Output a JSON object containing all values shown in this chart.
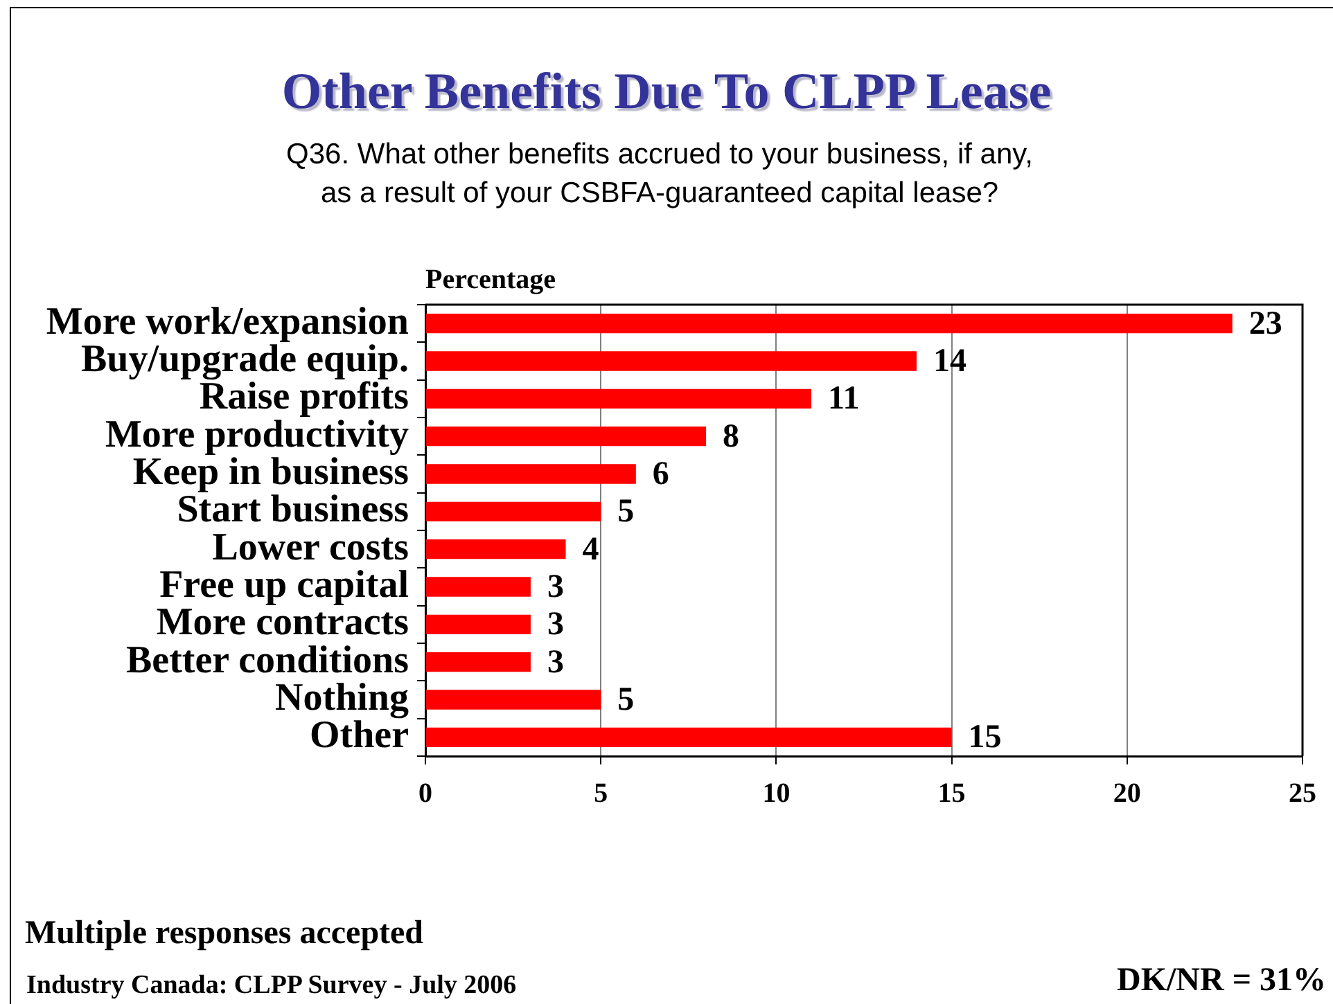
{
  "chart_data": {
    "type": "bar",
    "orientation": "horizontal",
    "title": "Other Benefits Due To CLPP Lease",
    "subtitle": "Q36. What other benefits accrued to your business, if any, as a result of your CSBFA-guaranteed capital lease?",
    "xlabel": "Percentage",
    "categories": [
      "More work/expansion",
      "Buy/upgrade equip.",
      "Raise profits",
      "More productivity",
      "Keep in business",
      "Start business",
      "Lower costs",
      "Free up capital",
      "More contracts",
      "Better conditions",
      "Nothing",
      "Other"
    ],
    "values": [
      23,
      14,
      11,
      8,
      6,
      5,
      4,
      3,
      3,
      3,
      5,
      15
    ],
    "color": "#ff0000",
    "xlim": [
      0,
      25
    ],
    "xticks": [
      0,
      5,
      10,
      15,
      20,
      25
    ],
    "grid": "x",
    "data_labels": true,
    "legend": false,
    "annotations": [
      "Multiple responses accepted",
      "Industry Canada: CLPP Survey - July 2006",
      "DK/NR = 31%"
    ]
  }
}
